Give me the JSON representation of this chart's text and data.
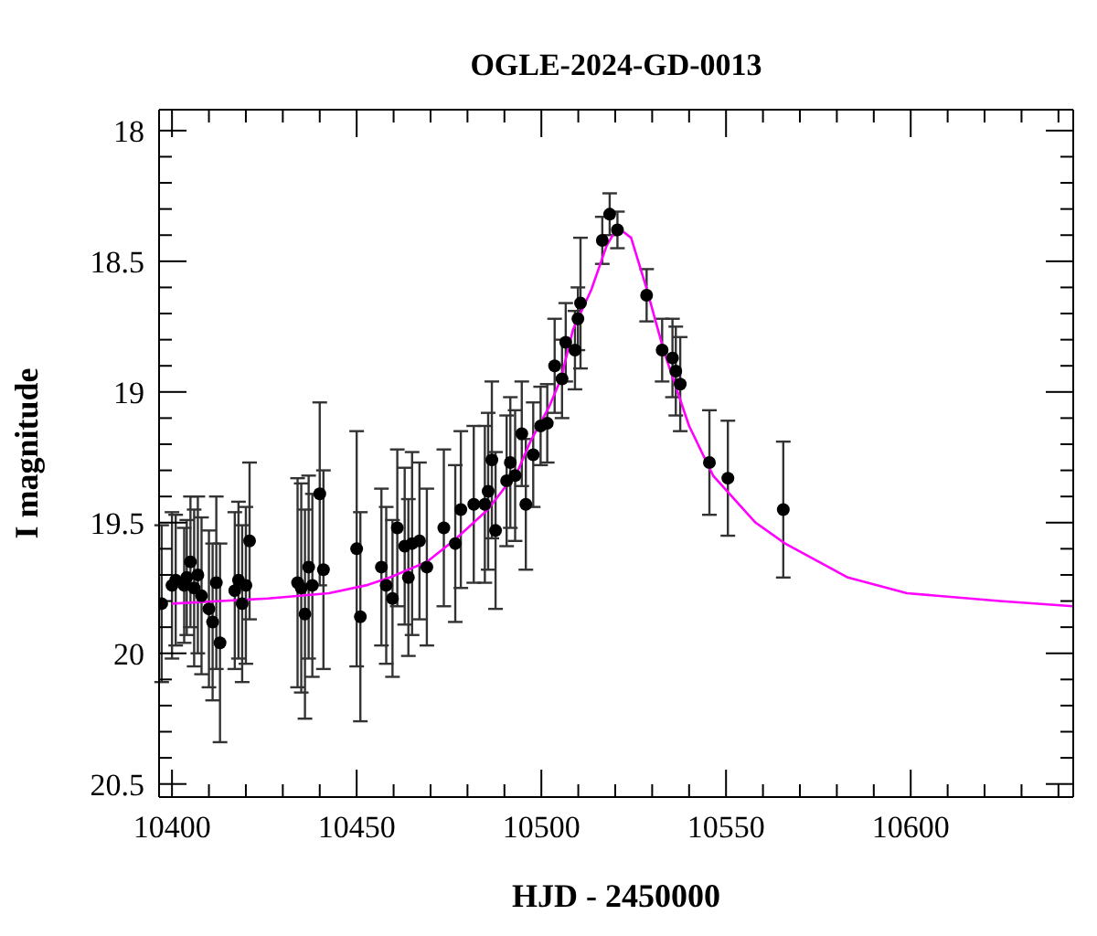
{
  "chart_data": {
    "type": "scatter",
    "title": "OGLE-2024-GD-0013",
    "xlabel": "HJD - 2450000",
    "ylabel": "I magnitude",
    "legend": false,
    "xlim": [
      10396.5,
      10644
    ],
    "ylim": [
      20.55,
      17.92
    ],
    "xticks": [
      10400,
      {
        "value": 10410,
        "label": null
      },
      {
        "value": 10420,
        "label": null
      },
      {
        "value": 10430,
        "label": null
      },
      {
        "value": 10440,
        "label": null
      },
      10450,
      {
        "value": 10460,
        "label": null
      },
      {
        "value": 10470,
        "label": null
      },
      {
        "value": 10480,
        "label": null
      },
      {
        "value": 10490,
        "label": null
      },
      10500,
      {
        "value": 10510,
        "label": null
      },
      {
        "value": 10520,
        "label": null
      },
      {
        "value": 10530,
        "label": null
      },
      {
        "value": 10540,
        "label": null
      },
      10550,
      {
        "value": 10560,
        "label": null
      },
      {
        "value": 10570,
        "label": null
      },
      {
        "value": 10580,
        "label": null
      },
      {
        "value": 10590,
        "label": null
      },
      10600,
      {
        "value": 10610,
        "label": null
      },
      {
        "value": 10620,
        "label": null
      },
      {
        "value": 10630,
        "label": null
      },
      {
        "value": 10640,
        "label": null
      }
    ],
    "yticks": [
      18,
      {
        "value": 18.1,
        "label": null
      },
      {
        "value": 18.2,
        "label": null
      },
      {
        "value": 18.3,
        "label": null
      },
      {
        "value": 18.4,
        "label": null
      },
      18.5,
      {
        "value": 18.6,
        "label": null
      },
      {
        "value": 18.7,
        "label": null
      },
      {
        "value": 18.8,
        "label": null
      },
      {
        "value": 18.9,
        "label": null
      },
      19,
      {
        "value": 19.1,
        "label": null
      },
      {
        "value": 19.2,
        "label": null
      },
      {
        "value": 19.3,
        "label": null
      },
      {
        "value": 19.4,
        "label": null
      },
      19.5,
      {
        "value": 19.6,
        "label": null
      },
      {
        "value": 19.7,
        "label": null
      },
      {
        "value": 19.8,
        "label": null
      },
      {
        "value": 19.9,
        "label": null
      },
      20,
      {
        "value": 20.1,
        "label": null
      },
      {
        "value": 20.2,
        "label": null
      },
      {
        "value": 20.3,
        "label": null
      },
      {
        "value": 20.4,
        "label": null
      },
      20.5
    ],
    "series": [
      {
        "color": "#000000",
        "marker": "circle",
        "x": [
          10397.2,
          10400,
          10401,
          10403.3,
          10404,
          10405,
          10406,
          10407,
          10408,
          10410,
          10411,
          10412,
          10413,
          10417,
          10418,
          10419,
          10420,
          10421,
          10434,
          10435,
          10436,
          10437,
          10438,
          10440,
          10441,
          10450,
          10451,
          10456.7,
          10458,
          10459.7,
          10461,
          10463,
          10464,
          10465,
          10467,
          10469,
          10473.6,
          10476.7,
          10478.2,
          10481.7,
          10484.7,
          10485.6,
          10486.6,
          10487.6,
          10490.6,
          10491.6,
          10492.9,
          10494.7,
          10495.8,
          10497.8,
          10499.8,
          10501.6,
          10503.6,
          10505.6,
          10506.6,
          10509.1,
          10509.9,
          10510.6,
          10516.5,
          10518.5,
          10520.6,
          10528.5,
          10532.7,
          10535.5,
          10536.4,
          10537.6,
          10545.5,
          10550.5,
          10565.5
        ],
        "values": [
          19.81,
          19.74,
          19.72,
          19.74,
          19.71,
          19.65,
          19.75,
          19.7,
          19.78,
          19.83,
          19.88,
          19.73,
          19.96,
          19.76,
          19.72,
          19.81,
          19.74,
          19.57,
          19.73,
          19.75,
          19.85,
          19.67,
          19.74,
          19.39,
          19.68,
          19.6,
          19.86,
          19.67,
          19.74,
          19.79,
          19.52,
          19.59,
          19.71,
          19.58,
          19.57,
          19.67,
          19.52,
          19.58,
          19.45,
          19.43,
          19.43,
          19.38,
          19.26,
          19.53,
          19.34,
          19.27,
          19.32,
          19.16,
          19.43,
          19.24,
          19.13,
          19.12,
          18.9,
          18.95,
          18.81,
          18.84,
          18.72,
          18.66,
          18.42,
          18.32,
          18.38,
          18.63,
          18.84,
          18.87,
          18.92,
          18.97,
          19.27,
          19.33,
          19.45
        ],
        "errors": [
          0.3,
          0.28,
          0.25,
          0.22,
          0.22,
          0.25,
          0.3,
          0.3,
          0.3,
          0.3,
          0.3,
          0.33,
          0.38,
          0.3,
          0.3,
          0.3,
          0.3,
          0.3,
          0.4,
          0.4,
          0.4,
          0.35,
          0.35,
          0.35,
          0.38,
          0.45,
          0.4,
          0.3,
          0.3,
          0.3,
          0.3,
          0.3,
          0.3,
          0.35,
          0.3,
          0.3,
          0.3,
          0.3,
          0.3,
          0.3,
          0.3,
          0.3,
          0.3,
          0.3,
          0.25,
          0.25,
          0.25,
          0.2,
          0.25,
          0.2,
          0.15,
          0.15,
          0.18,
          0.15,
          0.15,
          0.15,
          0.12,
          0.25,
          0.09,
          0.08,
          0.07,
          0.1,
          0.12,
          0.15,
          0.17,
          0.18,
          0.2,
          0.22,
          0.26
        ]
      },
      {
        "type": "line",
        "color": "#ff00ff",
        "marker": "none",
        "line_style": "solid",
        "x": [
          10400,
          10426,
          10442.5,
          10452.5,
          10459,
          10469,
          10477,
          10485.5,
          10493.7,
          10497,
          10502,
          10505.3,
          10508.6,
          10513.5,
          10517.7,
          10520.6,
          10524.3,
          10528.4,
          10533.3,
          10540,
          10546.5,
          10558,
          10566,
          10583,
          10599,
          10624,
          10644
        ],
        "values": [
          19.81,
          19.79,
          19.77,
          19.74,
          19.71,
          19.65,
          19.56,
          19.45,
          19.3,
          19.19,
          19.06,
          18.95,
          18.76,
          18.61,
          18.44,
          18.37,
          18.41,
          18.6,
          18.85,
          19.13,
          19.32,
          19.5,
          19.58,
          19.71,
          19.77,
          19.8,
          19.82
        ]
      }
    ]
  }
}
